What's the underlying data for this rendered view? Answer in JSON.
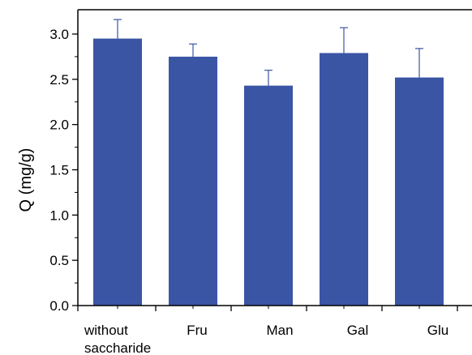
{
  "chart_data": {
    "type": "bar",
    "categories": [
      [
        "without",
        "saccharide"
      ],
      [
        "Fru"
      ],
      [
        "Man"
      ],
      [
        "Gal"
      ],
      [
        "Glu"
      ]
    ],
    "values": [
      2.95,
      2.75,
      2.43,
      2.79,
      2.52
    ],
    "error_plus": [
      0.21,
      0.14,
      0.17,
      0.28,
      0.32
    ],
    "title": "",
    "xlabel": "",
    "ylabel": "Q (mg/g)",
    "ylim": [
      0,
      3.25
    ],
    "yticks": [
      "0.0",
      "0.5",
      "1.0",
      "1.5",
      "2.0",
      "2.5",
      "3.0"
    ],
    "ytick_values": [
      0,
      0.5,
      1.0,
      1.5,
      2.0,
      2.5,
      3.0
    ],
    "grid": false,
    "legend": "none",
    "colors": {
      "bar": "#3B55A5",
      "error_bar": "#3B55A5",
      "axis": "#000000"
    }
  }
}
